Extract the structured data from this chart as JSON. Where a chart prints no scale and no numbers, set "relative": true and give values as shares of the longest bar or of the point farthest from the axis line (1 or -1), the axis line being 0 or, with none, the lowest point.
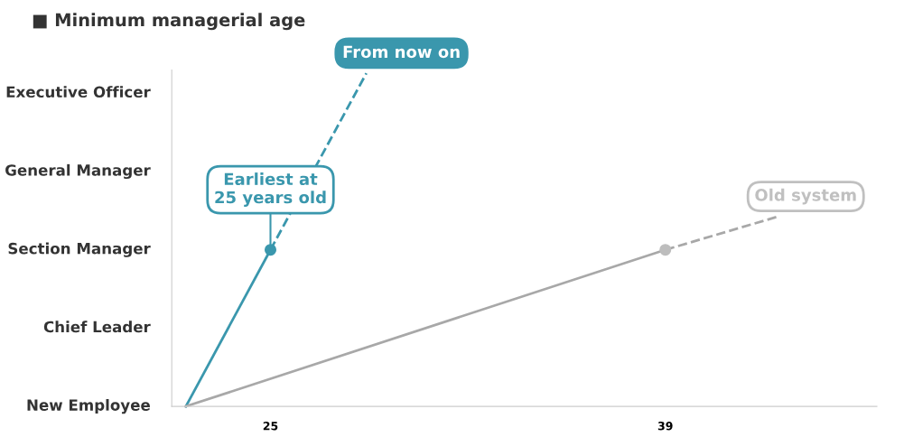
{
  "chart_data": {
    "type": "line",
    "title": "■ Minimum managerial age",
    "relative": true,
    "xlim": [
      21.5,
      46.5
    ],
    "xticks": [
      25,
      39
    ],
    "grid": false,
    "series": [
      {
        "color": "#3a97ad",
        "x": [
          22,
          25
        ],
        "values": [
          0,
          0.47
        ],
        "line_style": "solid"
      },
      {
        "color": "#3a97ad",
        "x": [
          25,
          28.4
        ],
        "values": [
          0.47,
          1
        ],
        "line_style": "dashed"
      },
      {
        "type": "scatter",
        "color": "#3a97ad",
        "x": [
          25
        ],
        "values": [
          0.47
        ],
        "marker": "circle"
      },
      {
        "color": "#a8a8a8",
        "x": [
          22,
          39
        ],
        "values": [
          0,
          0.47
        ],
        "line_style": "solid"
      },
      {
        "color": "#a8a8a8",
        "x": [
          39,
          43.0
        ],
        "values": [
          0.47,
          0.57
        ],
        "line_style": "dashed"
      },
      {
        "type": "scatter",
        "color": "#bdbdbd",
        "x": [
          39
        ],
        "values": [
          0.47
        ],
        "marker": "circle"
      }
    ],
    "annotations": [
      {
        "text": "From now on",
        "x": 28.4,
        "y": 1
      },
      {
        "text": "Earliest at\n25 years old",
        "x": 25,
        "y": 0.47
      },
      {
        "text": "Old system",
        "x": 43.0,
        "y": 0.57
      },
      "New Employee",
      "Chief Leader",
      "Section Manager",
      "General Manager",
      "Executive Officer"
    ]
  }
}
